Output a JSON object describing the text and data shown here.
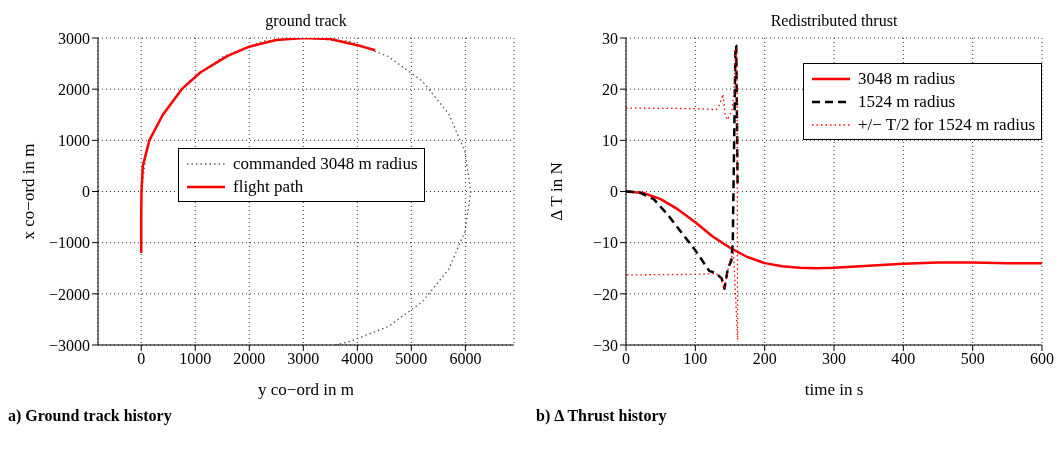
{
  "chart_data": [
    {
      "type": "line",
      "title": "ground track",
      "xlabel": "y co−ord in m",
      "ylabel": "x co−ord in m",
      "xlim": [
        -800,
        6900
      ],
      "xticks": [
        0,
        1000,
        2000,
        3000,
        4000,
        5000,
        6000
      ],
      "ylim": [
        -3000,
        3000
      ],
      "yticks": [
        -3000,
        -2000,
        -1000,
        0,
        1000,
        2000,
        3000
      ],
      "grid": true,
      "legend": "center",
      "marker": "none",
      "annotations": [
        "a) Ground track history"
      ],
      "series": [
        {
          "name": "commanded 3048 m radius",
          "color": "#555555",
          "line_style": "dotted",
          "x": [
            0,
            100,
            410,
            890,
            1520,
            2260,
            3050,
            3840,
            4570,
            5200,
            5690,
            5990,
            6100,
            5990,
            5690,
            5200,
            4570,
            3840,
            3590
          ],
          "values": [
            0,
            790,
            null,
            2160,
            2640,
            2940,
            3000,
            2940,
            2640,
            2160,
            1520,
            790,
            0,
            -790,
            -1520,
            -2160,
            -2640,
            -2940,
            -3000
          ]
        },
        {
          "name": "flight path",
          "color": "#ff0000",
          "line_style": "solid",
          "x": [
            0,
            0,
            5,
            30,
            150,
            400,
            750,
            1100,
            1600,
            2000,
            2500,
            3000,
            3500,
            4000,
            4330
          ],
          "values": [
            -1200,
            -500,
            0,
            500,
            1000,
            1500,
            2000,
            2330,
            2650,
            2830,
            2960,
            3000,
            2980,
            2860,
            2760
          ]
        }
      ]
    },
    {
      "type": "line",
      "title": "Redistributed thrust",
      "xlabel": "time in s",
      "ylabel": "Δ T in N",
      "xlim": [
        0,
        600
      ],
      "xticks": [
        0,
        100,
        200,
        300,
        400,
        500,
        600
      ],
      "ylim": [
        -30,
        30
      ],
      "yticks": [
        -30,
        -20,
        -10,
        0,
        10,
        20,
        30
      ],
      "grid": true,
      "legend": "top right",
      "marker": "none",
      "annotations": [
        "b) Δ Thrust history"
      ],
      "series": [
        {
          "name": "3048 m radius",
          "color": "#ff0000",
          "line_style": "solid",
          "x": [
            0,
            25,
            50,
            75,
            100,
            125,
            150,
            175,
            200,
            225,
            250,
            275,
            300,
            350,
            400,
            450,
            500,
            550,
            600
          ],
          "values": [
            0,
            -0.3,
            -1.5,
            -3.5,
            -6,
            -8.8,
            -11,
            -12.8,
            -14,
            -14.6,
            -14.9,
            -15,
            -14.9,
            -14.5,
            -14.1,
            -13.9,
            -13.9,
            -14,
            -14
          ]
        },
        {
          "name": "1524 m radius",
          "color": "#000000",
          "line_style": "dashed",
          "x": [
            0,
            20,
            40,
            60,
            80,
            100,
            120,
            130,
            138,
            142,
            147,
            152,
            154,
            156,
            158,
            159,
            161
          ],
          "values": [
            0,
            -0.2,
            -1.5,
            -4.5,
            -8,
            -11.5,
            -15.5,
            -16,
            -17,
            -19,
            -15,
            -13.5,
            -10,
            10,
            28.5,
            28.5,
            1
          ]
        },
        {
          "name": "+/− T/2 for 1524 m radius",
          "color": "#ff0000",
          "line_style": "dotted",
          "x": [
            0,
            100,
            130,
            135,
            140,
            143,
            146,
            150,
            153,
            156,
            158,
            160,
            161,
            155,
            150,
            146,
            142,
            137,
            130,
            100,
            0
          ],
          "values": [
            16.3,
            16.2,
            16,
            17,
            19,
            15,
            14,
            15,
            16,
            20,
            28,
            28,
            -29,
            -12,
            -13.5,
            -16,
            -19,
            -17,
            -16,
            -16.2,
            -16.3
          ]
        }
      ]
    }
  ]
}
